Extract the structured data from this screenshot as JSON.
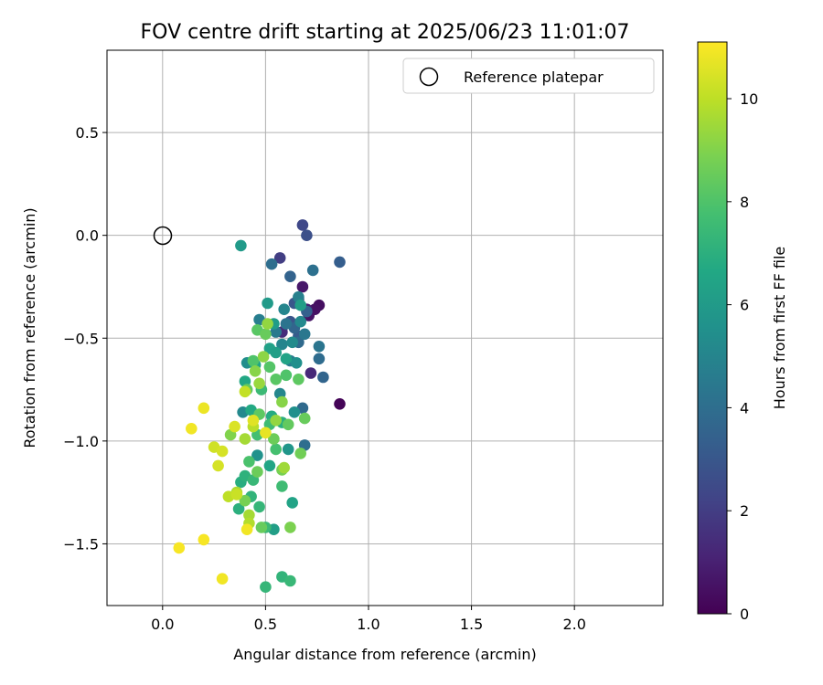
{
  "chart_data": {
    "type": "scatter",
    "title": "FOV centre drift starting at 2025/06/23 11:01:07",
    "xlabel": "Angular distance from reference (arcmin)",
    "ylabel": "Rotation from reference (arcmin)",
    "xlim": [
      -0.27,
      2.43
    ],
    "ylim": [
      -1.8,
      0.9
    ],
    "xticks": [
      0.0,
      0.5,
      1.0,
      1.5,
      2.0
    ],
    "xtick_labels": [
      "0.0",
      "0.5",
      "1.0",
      "1.5",
      "2.0"
    ],
    "yticks": [
      0.5,
      0.0,
      -0.5,
      -1.0,
      -1.5
    ],
    "ytick_labels": [
      "0.5",
      "0.0",
      "−0.5",
      "−1.0",
      "−1.5"
    ],
    "grid": true,
    "legend": {
      "placement": "upper right",
      "entries": [
        "Reference platepar"
      ]
    },
    "reference_point": {
      "x": 0.0,
      "y": 0.0
    },
    "colorbar": {
      "label": "Hours from first FF file",
      "range": [
        0,
        11.1
      ],
      "ticks": [
        0,
        2,
        4,
        6,
        8,
        10
      ],
      "tick_labels": [
        "0",
        "2",
        "4",
        "6",
        "8",
        "10"
      ],
      "colormap": "viridis"
    },
    "points": [
      [
        0.86,
        -0.82,
        0.1
      ],
      [
        0.76,
        -0.34,
        0.4
      ],
      [
        0.74,
        -0.36,
        0.5
      ],
      [
        0.68,
        -0.25,
        0.7
      ],
      [
        0.71,
        -0.39,
        0.6
      ],
      [
        0.7,
        -0.36,
        0.9
      ],
      [
        0.66,
        -0.31,
        1.1
      ],
      [
        0.72,
        -0.67,
        1.3
      ],
      [
        0.57,
        -0.11,
        2.0
      ],
      [
        0.58,
        -0.47,
        1.4
      ],
      [
        0.68,
        0.05,
        2.4
      ],
      [
        0.7,
        0.0,
        2.7
      ],
      [
        0.86,
        -0.13,
        3.3
      ],
      [
        0.62,
        -0.2,
        3.5
      ],
      [
        0.64,
        -0.33,
        3.0
      ],
      [
        0.62,
        -0.42,
        2.9
      ],
      [
        0.66,
        -0.49,
        3.2
      ],
      [
        0.7,
        -0.37,
        3.4
      ],
      [
        0.64,
        -0.45,
        3.6
      ],
      [
        0.78,
        -0.69,
        3.6
      ],
      [
        0.76,
        -0.6,
        3.9
      ],
      [
        0.66,
        -0.52,
        3.8
      ],
      [
        0.53,
        -0.14,
        4.0
      ],
      [
        0.73,
        -0.17,
        4.1
      ],
      [
        0.76,
        -0.54,
        4.3
      ],
      [
        0.69,
        -0.48,
        4.4
      ],
      [
        0.6,
        -0.43,
        4.2
      ],
      [
        0.55,
        -0.47,
        4.5
      ],
      [
        0.68,
        -0.84,
        3.8
      ],
      [
        0.69,
        -1.02,
        4.0
      ],
      [
        0.62,
        -0.61,
        4.6
      ],
      [
        0.66,
        -0.3,
        4.8
      ],
      [
        0.59,
        -0.36,
        5.0
      ],
      [
        0.67,
        -0.42,
        5.2
      ],
      [
        0.58,
        -0.53,
        5.0
      ],
      [
        0.47,
        -0.41,
        4.7
      ],
      [
        0.63,
        -0.52,
        5.3
      ],
      [
        0.57,
        -0.77,
        5.1
      ],
      [
        0.64,
        -0.86,
        5.5
      ],
      [
        0.41,
        -0.62,
        5.4
      ],
      [
        0.39,
        -0.86,
        5.2
      ],
      [
        0.46,
        -1.07,
        5.6
      ],
      [
        0.65,
        -0.62,
        5.5
      ],
      [
        0.61,
        -1.04,
        5.8
      ],
      [
        0.38,
        -0.05,
        6.0
      ],
      [
        0.51,
        -0.33,
        6.0
      ],
      [
        0.54,
        -0.43,
        6.1
      ],
      [
        0.67,
        -0.34,
        6.2
      ],
      [
        0.52,
        -0.55,
        6.3
      ],
      [
        0.6,
        -0.6,
        6.4
      ],
      [
        0.55,
        -0.57,
        6.2
      ],
      [
        0.45,
        -0.63,
        6.5
      ],
      [
        0.4,
        -0.71,
        6.6
      ],
      [
        0.54,
        -1.43,
        6.2
      ],
      [
        0.63,
        -1.3,
        6.4
      ],
      [
        0.52,
        -1.12,
        6.5
      ],
      [
        0.43,
        -0.85,
        6.7
      ],
      [
        0.53,
        -0.88,
        6.8
      ],
      [
        0.58,
        -0.91,
        7.0
      ],
      [
        0.38,
        -1.2,
        6.9
      ],
      [
        0.37,
        -1.33,
        7.0
      ],
      [
        0.4,
        -1.17,
        7.1
      ],
      [
        0.43,
        -1.27,
        7.2
      ],
      [
        0.47,
        -1.32,
        7.3
      ],
      [
        0.44,
        -1.19,
        7.4
      ],
      [
        0.5,
        -1.42,
        7.5
      ],
      [
        0.5,
        -1.71,
        7.3
      ],
      [
        0.58,
        -1.66,
        7.2
      ],
      [
        0.62,
        -1.68,
        7.4
      ],
      [
        0.48,
        -0.75,
        7.5
      ],
      [
        0.52,
        -0.92,
        7.6
      ],
      [
        0.46,
        -0.97,
        7.7
      ],
      [
        0.55,
        -1.04,
        7.8
      ],
      [
        0.58,
        -1.22,
        7.6
      ],
      [
        0.42,
        -1.1,
        7.9
      ],
      [
        0.44,
        -0.61,
        8.0
      ],
      [
        0.52,
        -0.64,
        8.1
      ],
      [
        0.55,
        -0.7,
        8.2
      ],
      [
        0.6,
        -0.68,
        8.0
      ],
      [
        0.66,
        -0.7,
        8.3
      ],
      [
        0.46,
        -0.46,
        8.2
      ],
      [
        0.5,
        -0.48,
        8.5
      ],
      [
        0.41,
        -0.75,
        8.4
      ],
      [
        0.47,
        -0.87,
        8.3
      ],
      [
        0.54,
        -0.99,
        8.6
      ],
      [
        0.61,
        -0.92,
        8.4
      ],
      [
        0.69,
        -0.89,
        8.5
      ],
      [
        0.67,
        -1.06,
        8.7
      ],
      [
        0.58,
        -1.14,
        8.8
      ],
      [
        0.46,
        -1.15,
        8.6
      ],
      [
        0.48,
        -1.42,
        8.5
      ],
      [
        0.62,
        -1.42,
        8.9
      ],
      [
        0.4,
        -1.29,
        8.8
      ],
      [
        0.33,
        -0.97,
        9.0
      ],
      [
        0.45,
        -0.66,
        9.1
      ],
      [
        0.49,
        -0.59,
        9.2
      ],
      [
        0.51,
        -0.43,
        9.3
      ],
      [
        0.58,
        -0.81,
        9.1
      ],
      [
        0.47,
        -0.72,
        9.4
      ],
      [
        0.55,
        -0.9,
        9.3
      ],
      [
        0.59,
        -1.13,
        9.5
      ],
      [
        0.4,
        -0.99,
        9.6
      ],
      [
        0.36,
        -1.25,
        9.7
      ],
      [
        0.42,
        -1.36,
        9.6
      ],
      [
        0.42,
        -1.4,
        9.8
      ],
      [
        0.44,
        -0.93,
        9.9
      ],
      [
        0.32,
        -1.27,
        10.0
      ],
      [
        0.4,
        -0.76,
        10.1
      ],
      [
        0.25,
        -1.03,
        10.3
      ],
      [
        0.29,
        -1.05,
        10.4
      ],
      [
        0.35,
        -0.93,
        10.5
      ],
      [
        0.44,
        -0.9,
        10.6
      ],
      [
        0.27,
        -1.12,
        10.4
      ],
      [
        0.36,
        -1.26,
        10.2
      ],
      [
        0.5,
        -0.96,
        10.7
      ],
      [
        0.2,
        -0.84,
        10.8
      ],
      [
        0.14,
        -0.94,
        10.9
      ],
      [
        0.41,
        -1.43,
        10.9
      ],
      [
        0.2,
        -1.48,
        11.0
      ],
      [
        0.08,
        -1.52,
        11.0
      ],
      [
        0.29,
        -1.67,
        10.9
      ]
    ]
  }
}
